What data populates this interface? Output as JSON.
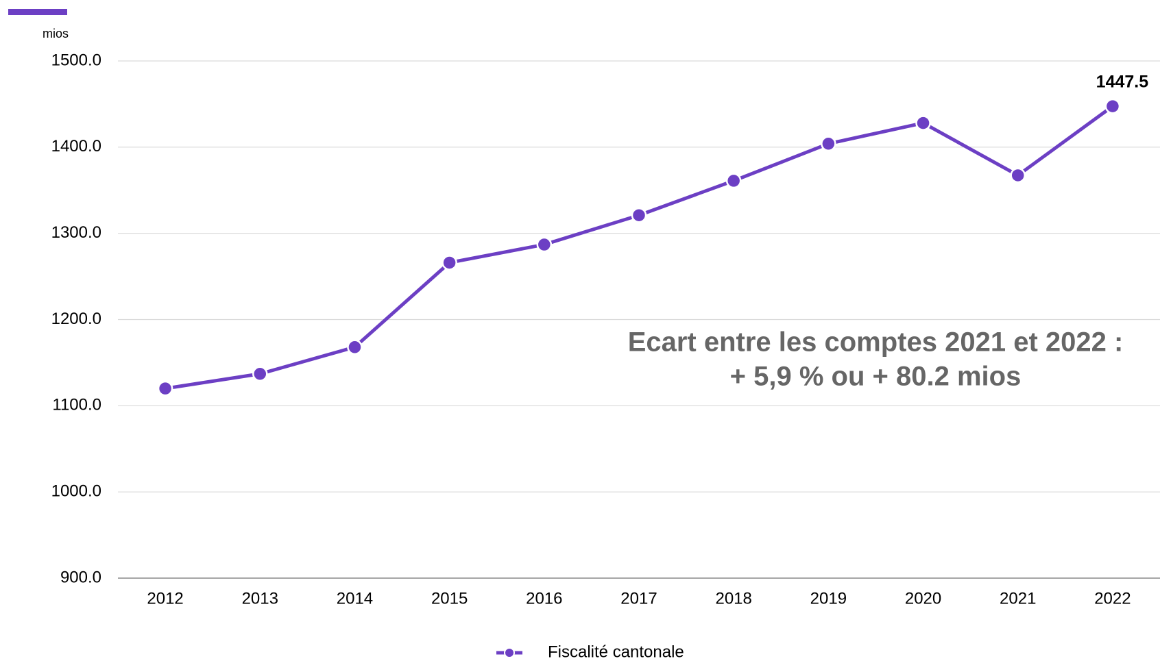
{
  "chart_data": {
    "type": "line",
    "y_axis_label": "mios",
    "categories": [
      "2012",
      "2013",
      "2014",
      "2015",
      "2016",
      "2017",
      "2018",
      "2019",
      "2020",
      "2021",
      "2022"
    ],
    "series": [
      {
        "name": "Fiscalité cantonale",
        "color": "#6c3fc4",
        "values": [
          1120,
          1137,
          1168,
          1266,
          1287,
          1321,
          1361,
          1404,
          1428,
          1367.3,
          1447.5
        ]
      }
    ],
    "data_label": {
      "index": 10
    },
    "annotation": [
      "Ecart entre les comptes 2021 et 2022 :",
      "+ 5,9 % ou + 80.2 mios"
    ],
    "ylim": [
      900,
      1500
    ],
    "yticks": [
      {
        "value": 900,
        "label": "900.0"
      },
      {
        "value": 1000,
        "label": "1000.0"
      },
      {
        "value": 1100,
        "label": "1100.0"
      },
      {
        "value": 1200,
        "label": "1200.0"
      },
      {
        "value": 1300,
        "label": "1300.0"
      },
      {
        "value": 1400,
        "label": "1400.0"
      },
      {
        "value": 1500,
        "label": "1500.0"
      }
    ],
    "grid": true,
    "legend": "bottom"
  }
}
